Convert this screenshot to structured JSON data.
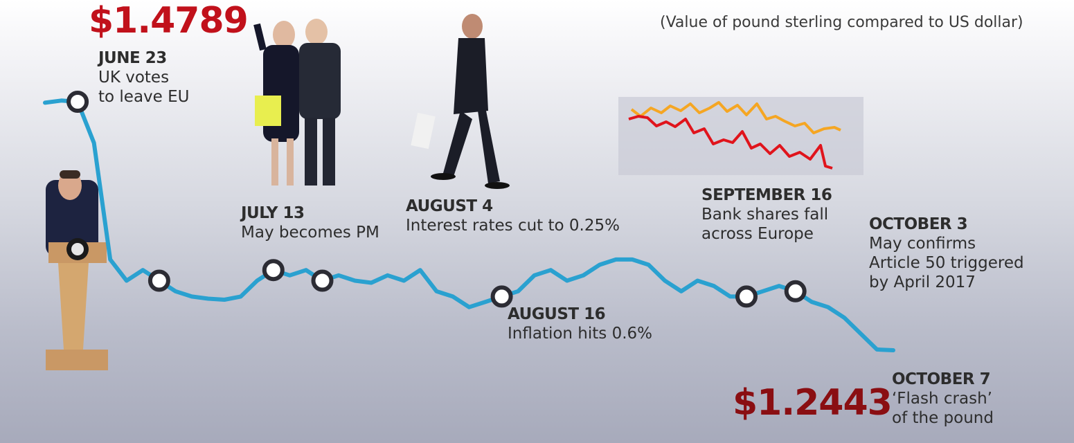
{
  "subtitle": "(Value of pound sterling compared to US dollar)",
  "start_price": "$1.4789",
  "end_price": "$1.2443",
  "colors": {
    "line": "#2aa1d0",
    "marker_ring": "#2c2c34",
    "start_price": "#c1111b",
    "end_price": "#8a0e12",
    "inset_orange": "#f5a623",
    "inset_red": "#e0141c"
  },
  "events": [
    {
      "date": "JUNE 23",
      "text": "UK votes\nto leave EU"
    },
    {
      "date": "JULY 13",
      "text": "May becomes PM"
    },
    {
      "date": "AUGUST 4",
      "text": "Interest rates cut to 0.25%"
    },
    {
      "date": "AUGUST 16",
      "text": "Inflation hits 0.6%"
    },
    {
      "date": "SEPTEMBER 16",
      "text": "Bank shares fall\nacross Europe"
    },
    {
      "date": "OCTOBER 3",
      "text": "May confirms\nArticle 50 triggered\nby April  2017"
    },
    {
      "date": "OCTOBER 7",
      "text": "‘Flash crash’\nof the pound"
    }
  ],
  "chart_data": {
    "type": "line",
    "title": "",
    "xlabel": "",
    "ylabel": "",
    "grid": false,
    "series": [
      {
        "values": [
          1.478,
          1.48,
          1.4789,
          1.44,
          1.33,
          1.31,
          1.32,
          1.31,
          1.3,
          1.295,
          1.293,
          1.292,
          1.295,
          1.31,
          1.32,
          1.315,
          1.32,
          1.31,
          1.315,
          1.31,
          1.308,
          1.315,
          1.31,
          1.32,
          1.3,
          1.295,
          1.285,
          1.29,
          1.295,
          1.3,
          1.315,
          1.32,
          1.31,
          1.315,
          1.325,
          1.33,
          1.33,
          1.325,
          1.31,
          1.3,
          1.31,
          1.305,
          1.295,
          1.295,
          1.3,
          1.305,
          1.3,
          1.29,
          1.285,
          1.275,
          1.26,
          1.245,
          1.2443
        ],
        "events_at": [
          2,
          7,
          14,
          17,
          28,
          43,
          46
        ]
      }
    ]
  }
}
